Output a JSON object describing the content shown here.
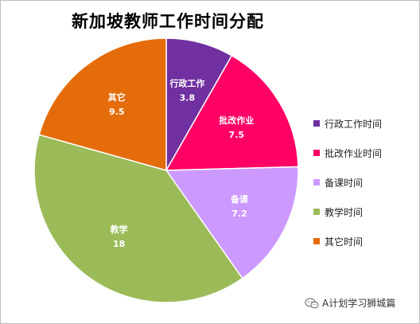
{
  "chart_data": {
    "type": "pie",
    "title": "新加坡教师工作时间分配",
    "categories": [
      "行政工作",
      "批改作业",
      "备课",
      "教学",
      "其它"
    ],
    "values": [
      3.8,
      7.5,
      7.2,
      18,
      9.5
    ],
    "value_labels": [
      "3.8",
      "7.5",
      "7.2",
      "18",
      "9.5"
    ],
    "colors": [
      "#7030a0",
      "#ff0066",
      "#cc99ff",
      "#9bbb59",
      "#e46c0a"
    ],
    "start_angle_deg": 0,
    "direction": "clockwise",
    "legend": {
      "position": "right",
      "entries": [
        "行政工作时间",
        "批改作业时间",
        "备课时间",
        "教学时间",
        "其它时间"
      ]
    }
  },
  "watermark": {
    "text": "A计划学习狮城篇",
    "icon": "wechat-icon"
  }
}
